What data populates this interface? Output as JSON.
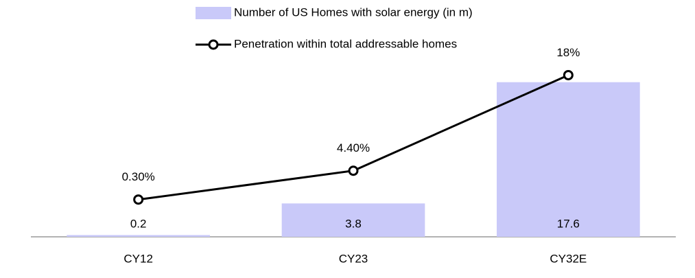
{
  "chart_data": {
    "type": "combo",
    "categories": [
      "CY12",
      "CY23",
      "CY32E"
    ],
    "series": [
      {
        "name": "Number of US Homes with solar energy (in m)",
        "type": "bar",
        "color": "#c9c9f9",
        "values": [
          0.2,
          3.8,
          17.6
        ]
      },
      {
        "name": "Penetration within total addressable homes",
        "type": "line",
        "axis": "y2",
        "color": "#000000",
        "values": [
          0.3,
          4.4,
          18
        ],
        "value_labels": [
          "0.30%",
          "4.40%",
          "18%"
        ]
      }
    ],
    "ylim": [
      0,
      20
    ],
    "y2lim": [
      -5,
      20
    ],
    "legend": "top"
  }
}
